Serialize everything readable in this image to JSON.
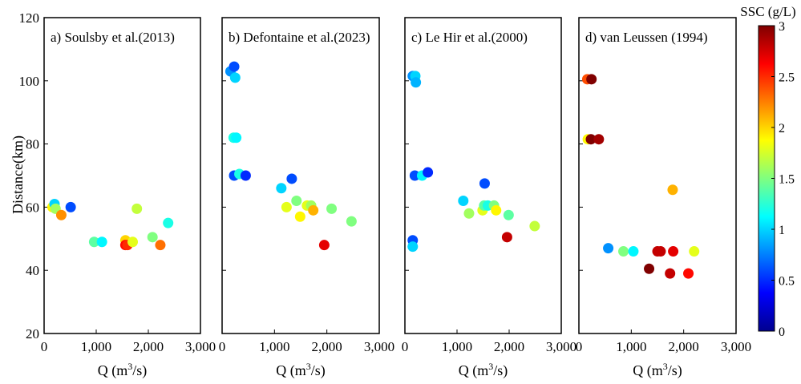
{
  "chart_data": [
    {
      "type": "scatter",
      "title": "a) Soulsby et al.(2013)",
      "xlabel": "Q (m³/s)",
      "ylabel": "Distance(km)",
      "xlim": [
        0,
        3000
      ],
      "ylim": [
        20,
        120
      ],
      "points": [
        {
          "x": 160,
          "y": 60,
          "c": 1.9
        },
        {
          "x": 200,
          "y": 61,
          "c": 1.0
        },
        {
          "x": 220,
          "y": 59.5,
          "c": 1.6
        },
        {
          "x": 330,
          "y": 57.5,
          "c": 2.2
        },
        {
          "x": 510,
          "y": 60,
          "c": 0.6
        },
        {
          "x": 960,
          "y": 49,
          "c": 1.4
        },
        {
          "x": 1110,
          "y": 49,
          "c": 1.1
        },
        {
          "x": 1560,
          "y": 49.5,
          "c": 2.0
        },
        {
          "x": 1560,
          "y": 48,
          "c": 2.6
        },
        {
          "x": 1600,
          "y": 48,
          "c": 2.5
        },
        {
          "x": 1700,
          "y": 49,
          "c": 1.8
        },
        {
          "x": 1780,
          "y": 59.5,
          "c": 1.7
        },
        {
          "x": 2080,
          "y": 50.5,
          "c": 1.5
        },
        {
          "x": 2230,
          "y": 48,
          "c": 2.3
        },
        {
          "x": 2380,
          "y": 55,
          "c": 1.2
        }
      ]
    },
    {
      "type": "scatter",
      "title": "b) Defontaine et al.(2023)",
      "xlabel": "Q (m³/s)",
      "ylabel": "",
      "xlim": [
        0,
        3000
      ],
      "ylim": [
        20,
        120
      ],
      "points": [
        {
          "x": 160,
          "y": 103,
          "c": 0.8
        },
        {
          "x": 230,
          "y": 104.5,
          "c": 0.6
        },
        {
          "x": 250,
          "y": 101,
          "c": 1.0
        },
        {
          "x": 220,
          "y": 82,
          "c": 1.2
        },
        {
          "x": 270,
          "y": 82,
          "c": 1.1
        },
        {
          "x": 230,
          "y": 70,
          "c": 0.6
        },
        {
          "x": 330,
          "y": 70.5,
          "c": 1.2
        },
        {
          "x": 450,
          "y": 70,
          "c": 0.5
        },
        {
          "x": 1130,
          "y": 66,
          "c": 1.0
        },
        {
          "x": 1330,
          "y": 69,
          "c": 0.6
        },
        {
          "x": 1230,
          "y": 60,
          "c": 1.8
        },
        {
          "x": 1420,
          "y": 62,
          "c": 1.5
        },
        {
          "x": 1490,
          "y": 57,
          "c": 1.9
        },
        {
          "x": 1620,
          "y": 60.5,
          "c": 1.8
        },
        {
          "x": 1700,
          "y": 60.5,
          "c": 1.6
        },
        {
          "x": 1740,
          "y": 59,
          "c": 2.1
        },
        {
          "x": 1950,
          "y": 48,
          "c": 2.7
        },
        {
          "x": 2090,
          "y": 59.5,
          "c": 1.5
        },
        {
          "x": 2470,
          "y": 55.5,
          "c": 1.5
        }
      ]
    },
    {
      "type": "scatter",
      "title": "c) Le Hir et al.(2000)",
      "xlabel": "Q (m³/s)",
      "ylabel": "",
      "xlim": [
        0,
        3000
      ],
      "ylim": [
        20,
        120
      ],
      "points": [
        {
          "x": 150,
          "y": 101.5,
          "c": 0.8
        },
        {
          "x": 200,
          "y": 101.5,
          "c": 1.0
        },
        {
          "x": 210,
          "y": 99.5,
          "c": 0.9
        },
        {
          "x": 190,
          "y": 70,
          "c": 0.6
        },
        {
          "x": 330,
          "y": 70,
          "c": 1.1
        },
        {
          "x": 440,
          "y": 71,
          "c": 0.5
        },
        {
          "x": 150,
          "y": 49.5,
          "c": 0.6
        },
        {
          "x": 150,
          "y": 47.5,
          "c": 1.0
        },
        {
          "x": 1120,
          "y": 62,
          "c": 1.0
        },
        {
          "x": 1530,
          "y": 67.5,
          "c": 0.6
        },
        {
          "x": 1230,
          "y": 58,
          "c": 1.6
        },
        {
          "x": 1490,
          "y": 59,
          "c": 1.8
        },
        {
          "x": 1520,
          "y": 60.5,
          "c": 1.4
        },
        {
          "x": 1590,
          "y": 60.5,
          "c": 1.2
        },
        {
          "x": 1710,
          "y": 60.5,
          "c": 1.5
        },
        {
          "x": 1750,
          "y": 59,
          "c": 1.9
        },
        {
          "x": 1960,
          "y": 50.5,
          "c": 2.8
        },
        {
          "x": 1990,
          "y": 57.5,
          "c": 1.4
        },
        {
          "x": 2490,
          "y": 54,
          "c": 1.7
        }
      ]
    },
    {
      "type": "scatter",
      "title": "d) van Leussen (1994)",
      "xlabel": "Q (m³/s)",
      "ylabel": "",
      "xlim": [
        0,
        3000
      ],
      "ylim": [
        20,
        120
      ],
      "points": [
        {
          "x": 160,
          "y": 100.5,
          "c": 2.4
        },
        {
          "x": 240,
          "y": 100.5,
          "c": 3.0
        },
        {
          "x": 170,
          "y": 81.5,
          "c": 1.9
        },
        {
          "x": 230,
          "y": 81.5,
          "c": 3.0
        },
        {
          "x": 380,
          "y": 81.5,
          "c": 2.9
        },
        {
          "x": 560,
          "y": 47,
          "c": 0.8
        },
        {
          "x": 850,
          "y": 46,
          "c": 1.5
        },
        {
          "x": 1040,
          "y": 46,
          "c": 1.1
        },
        {
          "x": 1340,
          "y": 40.5,
          "c": 3.0
        },
        {
          "x": 1500,
          "y": 46,
          "c": 2.8
        },
        {
          "x": 1560,
          "y": 46,
          "c": 2.8
        },
        {
          "x": 1740,
          "y": 39,
          "c": 2.8
        },
        {
          "x": 1790,
          "y": 65.5,
          "c": 2.1
        },
        {
          "x": 1800,
          "y": 46,
          "c": 2.7
        },
        {
          "x": 2090,
          "y": 39,
          "c": 2.6
        },
        {
          "x": 2200,
          "y": 46,
          "c": 1.8
        }
      ]
    }
  ],
  "shared": {
    "x_ticks": [
      "0",
      "1,000",
      "2,000",
      "3,000"
    ],
    "x_tick_values": [
      0,
      1000,
      2000,
      3000
    ],
    "y_ticks": [
      "20",
      "40",
      "60",
      "80",
      "100",
      "120"
    ],
    "y_tick_values": [
      20,
      40,
      60,
      80,
      100,
      120
    ],
    "xlabel_main": "Q (m",
    "xlabel_sup": "3",
    "xlabel_tail": "/s)"
  },
  "colorbar": {
    "label": "SSC (g/L)",
    "range": [
      0,
      3
    ],
    "colormap": "jet",
    "ticks": [
      "0",
      "0.5",
      "1",
      "1.5",
      "2",
      "2.5",
      "3"
    ],
    "tick_values": [
      0,
      0.5,
      1,
      1.5,
      2,
      2.5,
      3
    ]
  }
}
